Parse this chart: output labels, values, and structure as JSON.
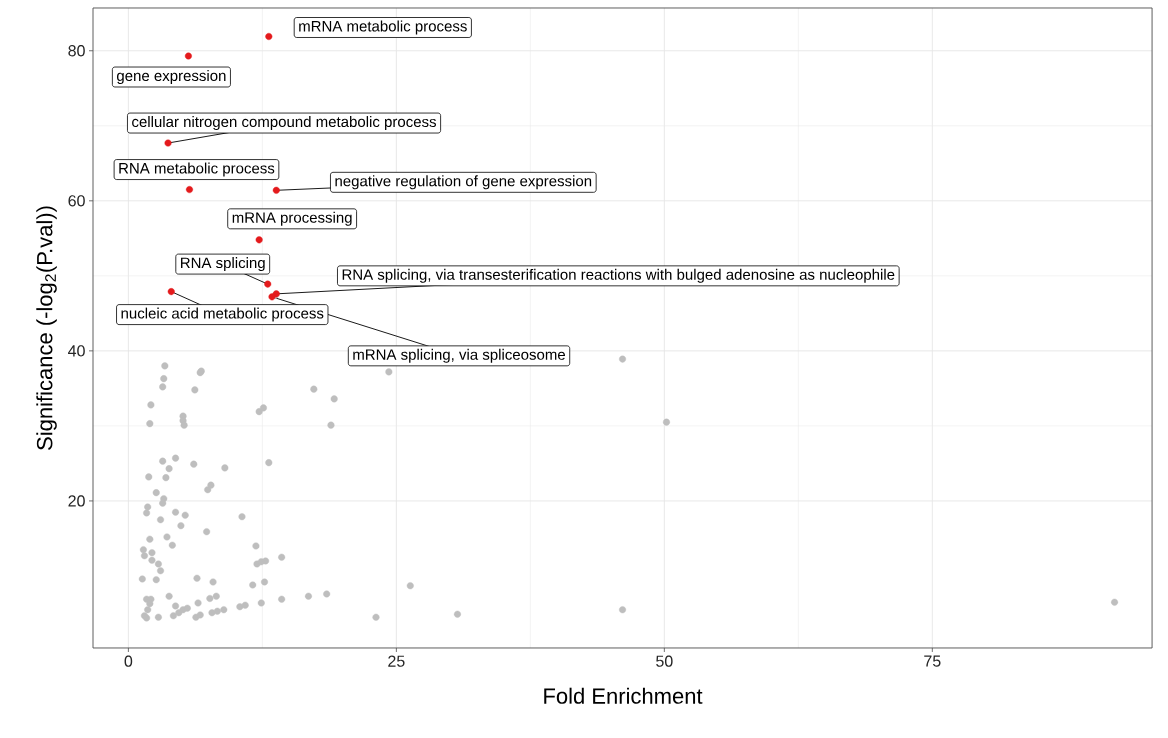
{
  "chart_data": {
    "type": "scatter",
    "xlabel": "Fold Enrichment",
    "ylabel": "Significance (-log$_{2}$(P.val))",
    "xlim": [
      -3.3,
      95.5
    ],
    "ylim": [
      0.4,
      85.7
    ],
    "xticks": [
      0,
      25,
      50,
      75
    ],
    "yticks": [
      20,
      40,
      60,
      80
    ],
    "grid": true,
    "marker": "circle",
    "series": [
      {
        "color": "#bebebe",
        "x": [
          3.4,
          3.3,
          3.2,
          6.8,
          6.7,
          6.2,
          2.1,
          2.0,
          5.1,
          5.1,
          5.2,
          12.2,
          12.6,
          3.2,
          4.4,
          6.1,
          9.0,
          13.1,
          3.8,
          1.9,
          3.5,
          7.4,
          7.7,
          2.6,
          3.3,
          3.2,
          1.8,
          1.7,
          4.4,
          5.3,
          3.0,
          10.6,
          4.9,
          7.3,
          2.0,
          3.6,
          4.1,
          11.9,
          1.4,
          1.5,
          2.2,
          2.2,
          2.8,
          3.0,
          12.0,
          12.4,
          12.8,
          14.3,
          1.3,
          2.6,
          6.4,
          7.9,
          11.6,
          12.7,
          1.7,
          2.1,
          2.0,
          1.8,
          1.5,
          1.7,
          2.8,
          3.8,
          4.4,
          4.2,
          4.7,
          5.1,
          5.5,
          6.3,
          6.7,
          6.5,
          7.6,
          8.2,
          7.8,
          8.3,
          8.9,
          10.4,
          10.9,
          12.4,
          14.3,
          17.3,
          19.2,
          18.9,
          24.3,
          16.8,
          18.5,
          23.1,
          26.3,
          46.1,
          50.2,
          30.7,
          46.1,
          92.0,
          13.7
        ],
        "values": [
          38.0,
          36.3,
          35.2,
          37.3,
          37.1,
          34.8,
          32.8,
          30.3,
          31.3,
          30.7,
          30.1,
          31.9,
          32.4,
          25.3,
          25.7,
          24.9,
          24.4,
          25.1,
          24.3,
          23.2,
          23.1,
          21.5,
          22.1,
          21.1,
          20.3,
          19.7,
          19.2,
          18.4,
          18.5,
          18.1,
          17.5,
          17.9,
          16.7,
          15.9,
          14.9,
          15.2,
          14.1,
          14.0,
          13.5,
          12.7,
          13.1,
          12.1,
          11.6,
          10.7,
          11.6,
          11.9,
          12.0,
          12.5,
          9.6,
          9.5,
          9.7,
          9.2,
          8.8,
          9.2,
          6.9,
          6.9,
          6.3,
          5.5,
          4.7,
          4.4,
          4.5,
          7.3,
          6.0,
          4.7,
          5.1,
          5.5,
          5.7,
          4.5,
          4.8,
          6.4,
          7.0,
          7.3,
          5.1,
          5.3,
          5.5,
          5.9,
          6.1,
          6.4,
          6.9,
          34.9,
          33.6,
          30.1,
          37.2,
          7.3,
          7.6,
          4.5,
          8.7,
          38.9,
          30.5,
          4.9,
          5.5,
          6.5,
          47.4
        ]
      },
      {
        "color": "#e41a1c",
        "x": [
          13.1,
          5.6,
          3.7,
          5.7,
          13.8,
          12.2,
          13.0,
          13.8,
          4.0,
          13.4
        ],
        "values": [
          81.9,
          79.3,
          67.7,
          61.5,
          61.4,
          54.8,
          48.9,
          47.6,
          47.9,
          47.2
        ]
      }
    ],
    "annotations": [
      {
        "text": "mRNA metabolic process",
        "x": 13.1,
        "y": 81.9
      },
      {
        "text": "gene expression",
        "x": 5.6,
        "y": 79.3
      },
      {
        "text": "cellular nitrogen compound metabolic process",
        "x": 3.7,
        "y": 67.7
      },
      {
        "text": "RNA metabolic process",
        "x": 5.7,
        "y": 61.5
      },
      {
        "text": "negative regulation of gene expression",
        "x": 13.8,
        "y": 61.4
      },
      {
        "text": "mRNA processing",
        "x": 12.2,
        "y": 54.8
      },
      {
        "text": "RNA splicing",
        "x": 13.0,
        "y": 48.9
      },
      {
        "text": "RNA splicing, via transesterification reactions with bulged adenosine as nucleophile",
        "x": 13.8,
        "y": 47.6
      },
      {
        "text": "nucleic acid metabolic process",
        "x": 4.0,
        "y": 47.9
      },
      {
        "text": "mRNA splicing, via spliceosome",
        "x": 13.4,
        "y": 47.2
      }
    ]
  }
}
